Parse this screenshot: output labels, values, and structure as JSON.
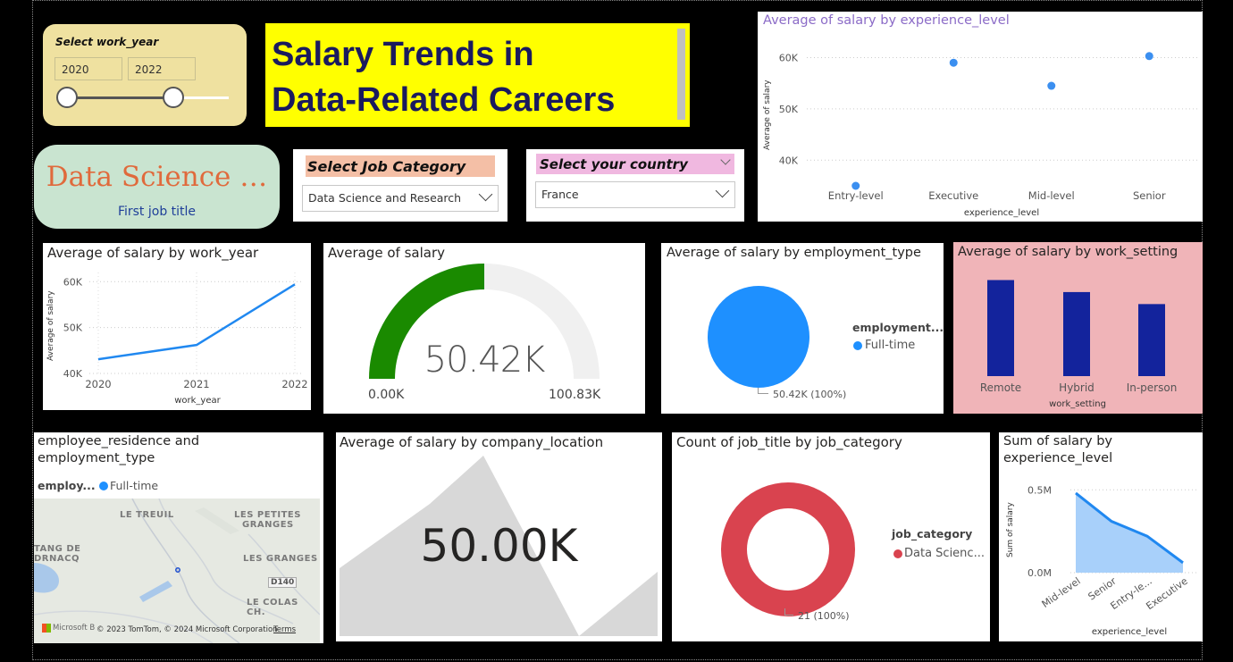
{
  "slicer_year": {
    "title": "Select work_year",
    "from": "2020",
    "to": "2022",
    "range_fraction": [
      0,
      0.6
    ]
  },
  "banner": {
    "line1": "Salary Trends in",
    "line2": "Data-Related Careers",
    "bg": "#ffff00",
    "text_color": "#1a1a5e"
  },
  "first_job_card": {
    "value": "Data Science …",
    "label": "First job title",
    "bg": "#c9e4d0",
    "value_color": "#e06a3c",
    "label_color": "#1f3f99"
  },
  "job_category_slicer": {
    "title": "Select Job Category",
    "value": "Data Science and Research",
    "title_bg": "#f4bfa6"
  },
  "country_slicer": {
    "title": "Select your country",
    "value": "France",
    "title_bg": "#f0b8e0"
  },
  "exp_scatter": {
    "title": "Average of salary by experience_level",
    "title_color": "#8b6bc7",
    "ylabel": "Average of salary",
    "xlabel": "experience_level",
    "yticks": [
      "60K",
      "50K",
      "40K"
    ]
  },
  "year_line": {
    "title": "Average of salary by work_year",
    "ylabel": "Average of salary",
    "xlabel": "work_year",
    "yticks": [
      "60K",
      "50K",
      "40K"
    ]
  },
  "gauge": {
    "title": "Average of salary",
    "value_label": "50.42K",
    "min_label": "0.00K",
    "max_label": "100.83K",
    "value": 50.42,
    "max": 100.83,
    "fill_color": "#1a8a00",
    "track_color": "#f0f0f0"
  },
  "employment_pie": {
    "title": "Average of salary by employment_type",
    "legend_title": "employment...",
    "legend_item": "Full-time",
    "data_label": "50.42K (100%)",
    "color": "#1e90ff"
  },
  "work_setting": {
    "title": "Average of salary by work_setting",
    "xlabel": "work_setting",
    "bg": "#f0b4b8",
    "bar_color": "#13239c"
  },
  "map": {
    "title_line1": "employee_residence and",
    "title_line2": "employment_type",
    "legend_title": "employ...",
    "legend_item": "Full-time",
    "places": [
      "LE TREUIL",
      "LES PETITES",
      "GRANGES",
      "TANG DE",
      "DRNACQ",
      "LES GRANGES",
      "D140",
      "LE COLAS CH."
    ],
    "copyright": "© 2023 TomTom, © 2024 Microsoft Corporation",
    "terms": "Terms",
    "brand": "Microsoft Bing"
  },
  "company_location": {
    "title": "Average of salary by company_location",
    "value_label": "50.00K"
  },
  "job_donut": {
    "title": "Count of job_title by job_category",
    "legend_title": "job_category",
    "legend_item": "Data Scienc...",
    "data_label": "21 (100%)",
    "color": "#d9434f"
  },
  "exp_area": {
    "title_line1": "Sum of salary by",
    "title_line2": "experience_level",
    "ylabel": "Sum of salary",
    "xlabel": "experience_level",
    "yticks": [
      "0.5M",
      "0.0M"
    ]
  },
  "chart_data": [
    {
      "type": "scatter",
      "title": "Average of salary by experience_level",
      "categories": [
        "Entry-level",
        "Executive",
        "Mid-level",
        "Senior"
      ],
      "values": [
        35000,
        59000,
        54500,
        60300
      ],
      "ylim": [
        35000,
        62000
      ],
      "color": "#3b8ff0",
      "grid": true
    },
    {
      "type": "line",
      "title": "Average of salary by work_year",
      "x": [
        "2020",
        "2021",
        "2022"
      ],
      "values": [
        43100,
        46200,
        59400
      ],
      "ylim": [
        40000,
        62000
      ],
      "color": "#2088f0",
      "grid": true
    },
    {
      "type": "bar",
      "title": "Average of salary by work_setting",
      "categories": [
        "Remote",
        "Hybrid",
        "In-person"
      ],
      "values": [
        59000,
        56000,
        53000
      ],
      "ylim": [
        35000,
        60000
      ]
    },
    {
      "type": "area",
      "title": "Sum of salary by experience_level",
      "categories": [
        "Mid-level",
        "Senior",
        "Entry-le...",
        "Executive"
      ],
      "values": [
        480000,
        310000,
        220000,
        60000
      ],
      "ylim": [
        0,
        550000
      ],
      "line_color": "#2088f0",
      "fill_color": "#a8d0fa"
    }
  ]
}
